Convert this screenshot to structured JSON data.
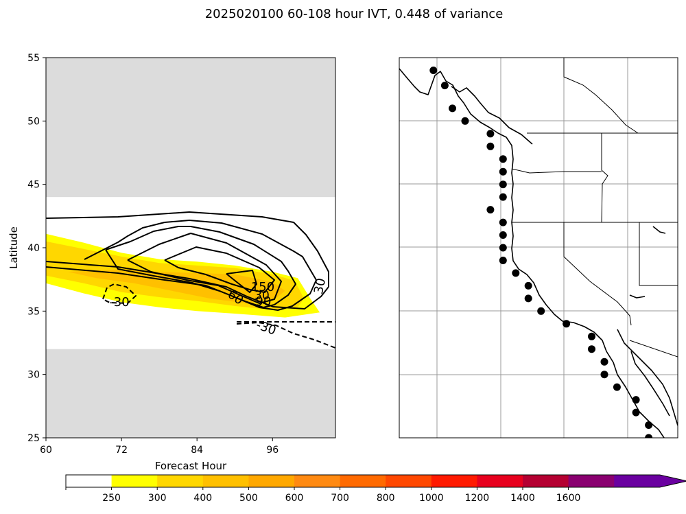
{
  "figure_title": "2025020100 60-108 hour IVT, 0.448 of variance",
  "chart_data": [
    {
      "type": "contour",
      "xlabel": "Forecast Hour",
      "ylabel": "Latitude",
      "xlim": [
        60,
        106
      ],
      "ylim": [
        25,
        55
      ],
      "x_ticks": [
        60,
        72,
        84,
        96
      ],
      "y_ticks": [
        25,
        30,
        35,
        40,
        45,
        50,
        55
      ],
      "grid": false,
      "masked_latitude_bands": [
        [
          25,
          32
        ],
        [
          44,
          55
        ]
      ],
      "mask_color": "#dcdcdc",
      "filled_levels": [
        {
          "level": 250,
          "color": "#ffff00",
          "polygon": [
            [
              60,
              41.1
            ],
            [
              66,
              40.4
            ],
            [
              72,
              39.6
            ],
            [
              78,
              39.1
            ],
            [
              84,
              38.9
            ],
            [
              90,
              38.6
            ],
            [
              96,
              38.1
            ],
            [
              100,
              37.6
            ],
            [
              102,
              36
            ],
            [
              103.5,
              34.9
            ],
            [
              98,
              34.5
            ],
            [
              90,
              34.8
            ],
            [
              84,
              35
            ],
            [
              78,
              35.3
            ],
            [
              72,
              35.7
            ],
            [
              66,
              36.4
            ],
            [
              60,
              37.2
            ]
          ]
        },
        {
          "level": 300,
          "color": "#ffd700",
          "polygon": [
            [
              60,
              40.5
            ],
            [
              66,
              39.9
            ],
            [
              72,
              39.3
            ],
            [
              78,
              38.8
            ],
            [
              84,
              38.6
            ],
            [
              90,
              38.4
            ],
            [
              96,
              37.9
            ],
            [
              99.5,
              37.4
            ],
            [
              101,
              36
            ],
            [
              100,
              35.3
            ],
            [
              96,
              35.1
            ],
            [
              90,
              35.4
            ],
            [
              84,
              35.8
            ],
            [
              78,
              36.1
            ],
            [
              72,
              36.5
            ],
            [
              66,
              37.2
            ],
            [
              60,
              37.8
            ]
          ]
        },
        {
          "level": 400,
          "color": "#ffc000",
          "polygon": [
            [
              63.5,
              38.1
            ],
            [
              72,
              38.3
            ],
            [
              78,
              38.1
            ],
            [
              84,
              38
            ],
            [
              90,
              37.9
            ],
            [
              96,
              37.3
            ],
            [
              98,
              36.6
            ],
            [
              96.5,
              36
            ],
            [
              92,
              35.6
            ],
            [
              86,
              36
            ],
            [
              80,
              36.6
            ],
            [
              74,
              37.2
            ],
            [
              68,
              37.6
            ]
          ]
        }
      ],
      "contour_labels": [
        "30",
        "60",
        "90",
        "150",
        "30",
        "-30",
        "-30"
      ]
    },
    {
      "type": "map",
      "region": "U.S. West Coast",
      "grid": true,
      "lon_range": [
        -142,
        -98
      ],
      "lat_range": [
        25,
        55
      ],
      "points_lonlat": [
        [
          -136.6,
          54.0
        ],
        [
          -134.8,
          52.8
        ],
        [
          -133.6,
          51.0
        ],
        [
          -131.6,
          50.0
        ],
        [
          -127.6,
          49.0
        ],
        [
          -127.6,
          48.0
        ],
        [
          -125.6,
          47.0
        ],
        [
          -125.6,
          46.0
        ],
        [
          -125.6,
          45.0
        ],
        [
          -125.6,
          44.0
        ],
        [
          -127.6,
          43.0
        ],
        [
          -125.6,
          42.0
        ],
        [
          -125.6,
          41.0
        ],
        [
          -125.6,
          40.0
        ],
        [
          -125.6,
          39.0
        ],
        [
          -123.6,
          38.0
        ],
        [
          -121.6,
          37.0
        ],
        [
          -121.6,
          36.0
        ],
        [
          -119.6,
          35.0
        ],
        [
          -115.6,
          34.0
        ],
        [
          -111.6,
          33.0
        ],
        [
          -111.6,
          32.0
        ],
        [
          -109.6,
          31.0
        ],
        [
          -109.6,
          30.0
        ],
        [
          -107.6,
          29.0
        ],
        [
          -104.6,
          28.0
        ],
        [
          -104.6,
          27.0
        ],
        [
          -102.6,
          26.0
        ],
        [
          -102.6,
          25.0
        ]
      ],
      "point_color": "#000000"
    }
  ],
  "colorbar": {
    "ticks": [
      "250",
      "300",
      "400",
      "500",
      "600",
      "700",
      "800",
      "1000",
      "1200",
      "1400",
      "1600"
    ],
    "colors": [
      "#ffffff",
      "#ffff00",
      "#ffd700",
      "#ffc000",
      "#ffa800",
      "#ff8a12",
      "#ff6a00",
      "#ff4800",
      "#ff1a00",
      "#e8001e",
      "#b50032",
      "#8a0070",
      "#6a00a0"
    ],
    "extend": "max"
  }
}
